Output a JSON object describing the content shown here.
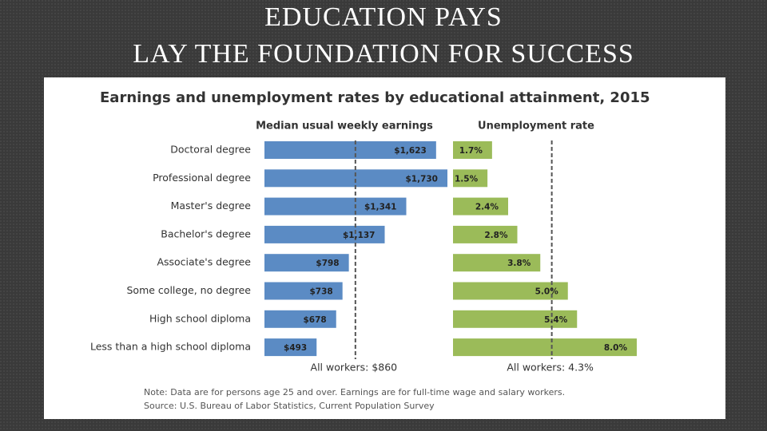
{
  "slide": {
    "title": "EDUCATION PAYS",
    "subtitle": "LAY THE FOUNDATION FOR SUCCESS"
  },
  "figure": {
    "title": "Earnings and unemployment rates by educational attainment, 2015",
    "note": "Note: Data are for persons age 25 and over. Earnings are for full-time wage and salary workers.",
    "source": "Source: U.S. Bureau of Labor Statistics, Current Population Survey"
  },
  "chart_data": [
    {
      "type": "bar",
      "orientation": "horizontal",
      "title": "Median usual weekly earnings",
      "categories": [
        "Doctoral degree",
        "Professional degree",
        "Master's degree",
        "Bachelor's degree",
        "Associate's degree",
        "Some college, no degree",
        "High school diploma",
        "Less than a high school diploma"
      ],
      "values": [
        1623,
        1730,
        1341,
        1137,
        798,
        738,
        678,
        493
      ],
      "value_labels": [
        "$1,623",
        "$1,730",
        "$1,341",
        "$1,137",
        "$798",
        "$738",
        "$678",
        "$493"
      ],
      "color": "#5b8bc4",
      "reference": {
        "value": 860,
        "label": "All workers: $860"
      }
    },
    {
      "type": "bar",
      "orientation": "horizontal",
      "title": "Unemployment rate",
      "values": [
        1.7,
        1.5,
        2.4,
        2.8,
        3.8,
        5.0,
        5.4,
        8.0
      ],
      "value_labels": [
        "1.7%",
        "1.5%",
        "2.4%",
        "2.8%",
        "3.8%",
        "5.0%",
        "5.4%",
        "8.0%"
      ],
      "color": "#9bbb59",
      "reference": {
        "value": 4.3,
        "label": "All workers: 4.3%"
      }
    }
  ]
}
